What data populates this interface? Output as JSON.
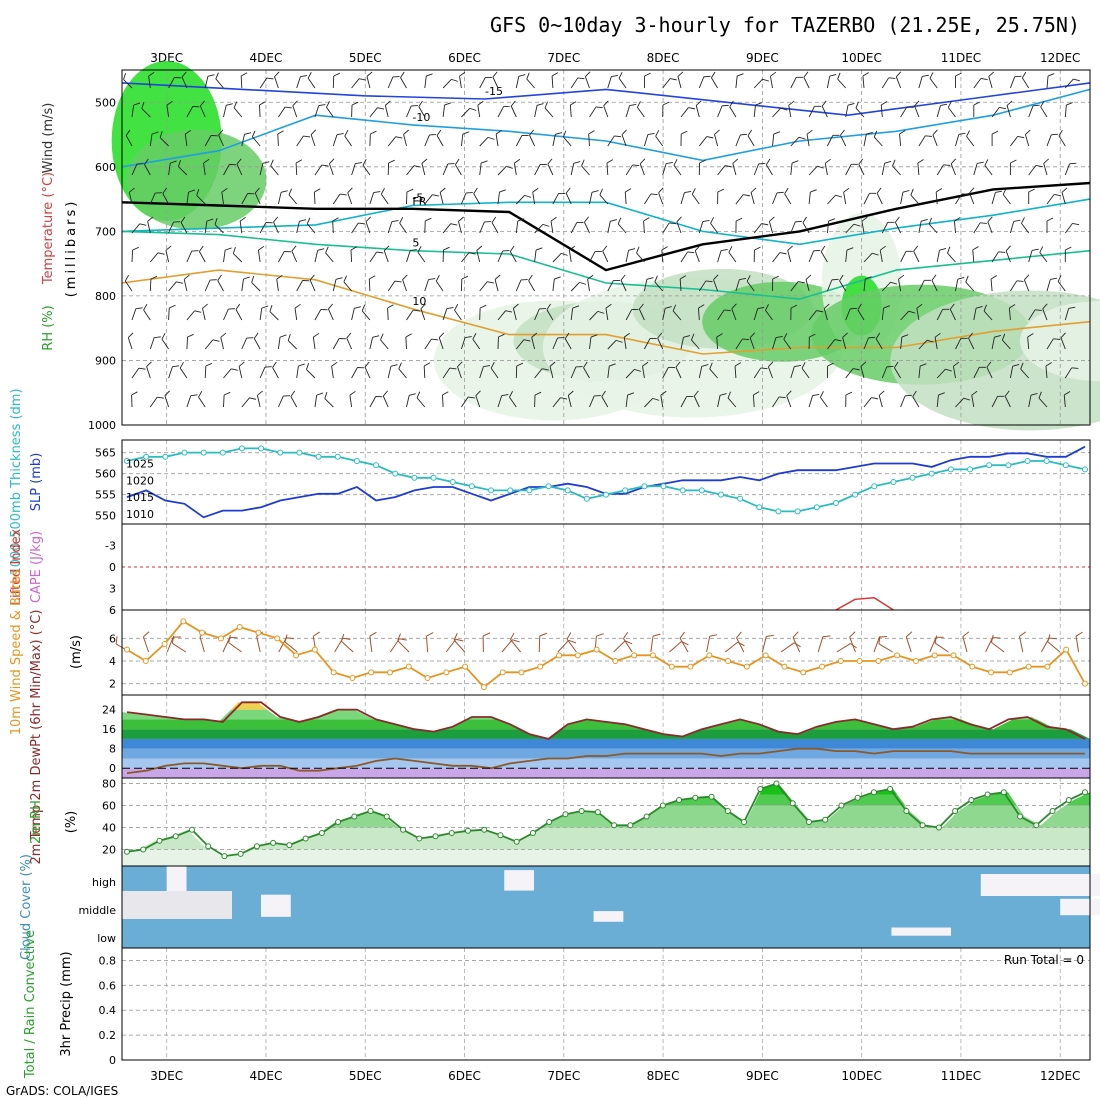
{
  "title": "GFS 0~10day 3-hourly for TAZERBO (21.25E, 25.75N)",
  "footer": "GrADS: COLA/IGES",
  "days": [
    "3DEC",
    "4DEC",
    "5DEC",
    "6DEC",
    "7DEC",
    "8DEC",
    "9DEC",
    "10DEC",
    "11DEC",
    "12DEC"
  ],
  "colors": {
    "rh_light": "#e6f3e6",
    "rh_mid": "#c2dfc2",
    "rh_green": "#66cc66",
    "rh_bright": "#22dd22",
    "slp": "#1e3cd0",
    "thickness": "#2bbcc0",
    "wind": "#a0522d",
    "speed": "#e69520",
    "cloud": "#6aaed6",
    "clear": "#f5f2f8",
    "lifted": "#dd3333",
    "cape": "#cc66cc"
  },
  "chart_data": [
    {
      "panel": "upper-air",
      "type": "heatmap",
      "ylabel_parts": [
        "RH (%)",
        "Temperature (°C)",
        "Wind (m/s)"
      ],
      "yunits": "(millibars)",
      "yticks": [
        500,
        600,
        700,
        800,
        900,
        1000
      ],
      "ylim": [
        450,
        1000
      ],
      "isotherms": [
        {
          "label": "-15",
          "color": "#2244dd",
          "points": [
            [
              0,
              -0.2
            ],
            [
              2,
              -0.25
            ],
            [
              3,
              0
            ],
            [
              5,
              0.5
            ],
            [
              6,
              0.7
            ],
            [
              7,
              1
            ],
            [
              8,
              0.9
            ],
            [
              9.5,
              1.1
            ],
            [
              10.3,
              1.2
            ]
          ],
          "level": [
            470,
            480,
            490,
            495,
            480,
            500,
            520,
            495,
            470
          ]
        },
        {
          "label": "-10",
          "color": "#1f9fe0",
          "points": [],
          "level": [
            600,
            575,
            520,
            535,
            545,
            560,
            590,
            560,
            545,
            520,
            480
          ]
        },
        {
          "label": "-5",
          "color": "#11b3c8",
          "points": [],
          "level": [
            700,
            695,
            690,
            660,
            655,
            655,
            700,
            720,
            695,
            675,
            650
          ]
        },
        {
          "label": "5",
          "color": "#18c090",
          "points": [],
          "level": [
            700,
            705,
            720,
            730,
            735,
            780,
            790,
            805,
            760,
            745,
            730
          ]
        },
        {
          "label": "10",
          "color": "#e0a030",
          "points": [],
          "level": [
            780,
            760,
            775,
            820,
            860,
            860,
            890,
            880,
            880,
            855,
            840
          ]
        },
        {
          "label": "FR",
          "color": "#000000",
          "points": [],
          "level": [
            655,
            660,
            665,
            665,
            670,
            760,
            720,
            700,
            665,
            635,
            625
          ]
        }
      ]
    },
    {
      "panel": "thickness-slp",
      "type": "line",
      "ylabel_left": "1000-500mb Thickness (dm)",
      "ylabel_right": "SLP (mb)",
      "yticks_left": [
        550,
        555,
        560,
        565
      ],
      "yticks_right": [
        1010,
        1015,
        1020,
        1025
      ],
      "series": [
        {
          "key": "slp",
          "values": [
            1015,
            1017,
            1014,
            1013,
            1009,
            1011,
            1011,
            1012,
            1014,
            1015,
            1016,
            1016,
            1018,
            1014,
            1015,
            1017,
            1018,
            1018,
            1016,
            1014,
            1016,
            1018,
            1018,
            1019,
            1018,
            1016,
            1016,
            1018,
            1019,
            1020,
            1020,
            1020,
            1021,
            1020,
            1022,
            1023,
            1023,
            1023,
            1024,
            1025,
            1025,
            1025,
            1024,
            1026,
            1027,
            1027,
            1028,
            1028,
            1027,
            1027,
            1030
          ]
        },
        {
          "key": "thickness",
          "values": [
            563,
            564,
            564,
            565,
            565,
            565,
            566,
            566,
            565,
            565,
            564,
            564,
            563,
            562,
            560,
            559,
            559,
            558,
            557,
            556,
            556,
            556,
            557,
            556,
            554,
            555,
            556,
            557,
            557,
            556,
            556,
            555,
            554,
            552,
            551,
            551,
            552,
            553,
            555,
            557,
            558,
            559,
            560,
            561,
            561,
            562,
            562,
            563,
            563,
            562,
            561
          ]
        }
      ]
    },
    {
      "panel": "stability",
      "type": "line",
      "ylabel_left": "Lifted Index",
      "ylabel_right": "CAPE (J/kg)",
      "yticks": [
        -3,
        0,
        3,
        6
      ],
      "series": [
        {
          "key": "lifted",
          "values": [
            null,
            null,
            null,
            null,
            null,
            null,
            null,
            null,
            null,
            null,
            null,
            null,
            null,
            null,
            null,
            null,
            null,
            null,
            null,
            null,
            null,
            null,
            null,
            null,
            null,
            null,
            null,
            null,
            null,
            null,
            null,
            null,
            null,
            null,
            null,
            null,
            null,
            6,
            4.5,
            4.3,
            6,
            null,
            null,
            null,
            null,
            null,
            null,
            null,
            null,
            null,
            null
          ]
        }
      ]
    },
    {
      "panel": "surface-wind",
      "type": "line",
      "ylabel": "10m Wind Speed & Barbs",
      "yunits": "(m/s)",
      "yticks": [
        2,
        4,
        6
      ],
      "series": [
        {
          "key": "speed",
          "values": [
            5,
            4,
            5.5,
            7.5,
            6.5,
            6,
            7,
            6.5,
            6,
            4.5,
            5,
            3,
            2.5,
            3,
            3,
            3.5,
            2.5,
            3,
            3.5,
            1.7,
            3,
            3,
            3.5,
            4.5,
            4.5,
            5,
            4,
            4.5,
            4.5,
            3.5,
            3.5,
            4.5,
            4,
            3.5,
            4.5,
            3.5,
            3,
            3.5,
            4,
            4,
            4,
            4.5,
            4,
            4.5,
            4.5,
            3.5,
            3,
            3,
            3.5,
            3.5,
            5,
            2
          ]
        }
      ]
    },
    {
      "panel": "temperature",
      "type": "area",
      "ylabel": "2m Temp 2m DewPt (6hr Min/Max) (°C)",
      "yticks": [
        0,
        8,
        16,
        24
      ],
      "series": [
        {
          "key": "temp",
          "values": [
            23,
            22,
            21,
            20,
            20,
            19,
            27,
            27,
            21,
            19,
            21,
            24,
            24,
            20,
            18,
            16,
            15,
            17,
            21,
            21,
            18,
            14,
            12,
            18,
            20,
            19,
            18,
            16,
            14,
            13,
            16,
            18,
            20,
            18,
            15,
            14,
            17,
            19,
            20,
            18,
            16,
            17,
            20,
            21,
            18,
            16,
            20,
            21,
            17,
            16,
            12
          ]
        },
        {
          "key": "dewpt",
          "values": [
            -2,
            -1,
            1,
            2,
            2,
            1,
            0,
            1,
            1,
            -1,
            -1,
            0,
            1,
            3,
            4,
            3,
            2,
            1,
            1,
            0,
            2,
            3,
            4,
            4,
            5,
            5,
            6,
            6,
            6,
            6,
            6,
            5,
            6,
            6,
            7,
            8,
            8,
            7,
            7,
            6,
            7,
            7,
            7,
            7,
            6,
            6,
            6,
            6,
            6,
            6,
            6
          ]
        }
      ]
    },
    {
      "panel": "humidity",
      "type": "area",
      "ylabel": "2m RH",
      "yunits": "(%)",
      "yticks": [
        20,
        40,
        60,
        80
      ],
      "series": [
        {
          "key": "rh",
          "values": [
            18,
            20,
            28,
            32,
            38,
            23,
            14,
            16,
            23,
            26,
            24,
            30,
            35,
            45,
            50,
            55,
            50,
            38,
            30,
            32,
            35,
            37,
            38,
            33,
            27,
            35,
            45,
            52,
            55,
            54,
            42,
            42,
            50,
            60,
            65,
            67,
            68,
            55,
            45,
            75,
            80,
            62,
            45,
            47,
            60,
            67,
            72,
            75,
            55,
            42,
            40,
            55,
            65,
            70,
            72,
            50,
            42,
            55,
            65,
            72
          ]
        }
      ]
    },
    {
      "panel": "cloud",
      "type": "heatmap",
      "ylabel": "Cloud Cover (%)",
      "levels": [
        "high",
        "middle",
        "low"
      ]
    },
    {
      "panel": "precip",
      "type": "bar",
      "ylabel_left": "Total / Rain Convective",
      "ylabel_right": "3hr Precip (mm)",
      "yticks": [
        0,
        0.2,
        0.4,
        0.6,
        0.8
      ],
      "run_total": "Run Total = 0"
    }
  ]
}
